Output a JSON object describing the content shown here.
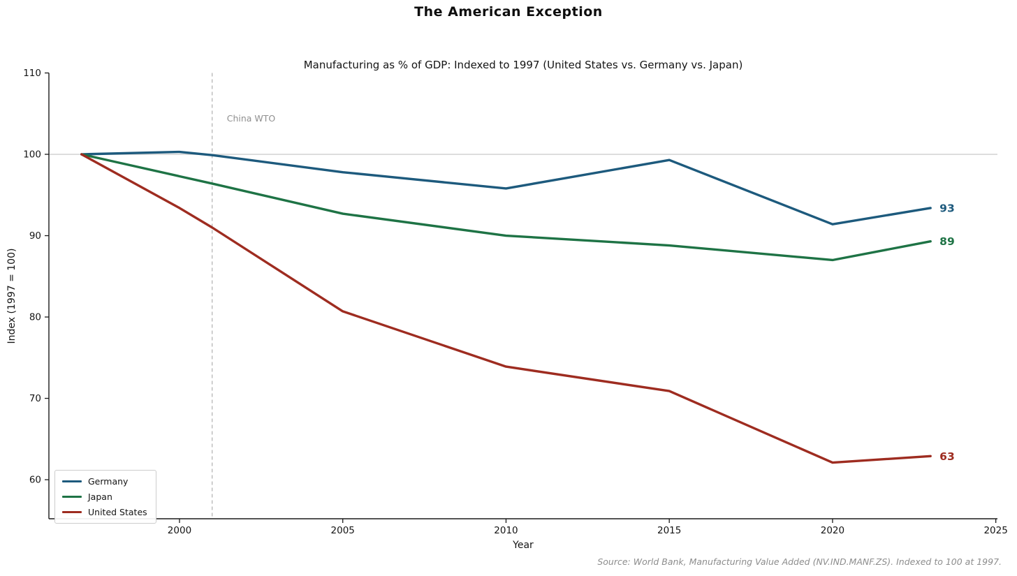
{
  "chart_data": {
    "type": "line",
    "title": "The American Exception",
    "subtitle": "Manufacturing as % of GDP: Indexed to 1997 (United States vs. Germany vs. Japan)",
    "xlabel": "Year",
    "ylabel": "Index (1997 = 100)",
    "xlim": [
      1996,
      2025.05
    ],
    "ylim": [
      55.2,
      110
    ],
    "xticks": [
      2000,
      2005,
      2010,
      2015,
      2020,
      2025
    ],
    "yticks": [
      60,
      70,
      80,
      90,
      100,
      110
    ],
    "grid": "single horizontal reference line at y=100, light gray",
    "baseline_y": 100,
    "annotation": {
      "label": "China WTO",
      "x": 2001,
      "color": "#8f8f8f"
    },
    "x": [
      1997,
      2000,
      2001,
      2005,
      2010,
      2015,
      2020,
      2023
    ],
    "series": [
      {
        "name": "Germany",
        "color": "#1d5a7d",
        "values": [
          100,
          100.3,
          99.9,
          97.8,
          95.8,
          99.3,
          91.4,
          93.4
        ],
        "end_label": "93"
      },
      {
        "name": "Japan",
        "color": "#1e7345",
        "values": [
          100,
          97.3,
          96.4,
          92.7,
          90.0,
          88.8,
          87.0,
          89.3
        ],
        "end_label": "89"
      },
      {
        "name": "United States",
        "color": "#9e2c20",
        "values": [
          100,
          93.4,
          91.0,
          80.7,
          73.9,
          70.9,
          62.1,
          62.9
        ],
        "end_label": "63"
      }
    ],
    "legend_position": "lower left",
    "source_note": "Source: World Bank, Manufacturing Value Added (NV.IND.MANF.ZS). Indexed to 100 at 1997.",
    "axis_color": "#1a1a1a",
    "tick_label_color": "#141414",
    "reference_line_color": "#d6d6d6"
  }
}
